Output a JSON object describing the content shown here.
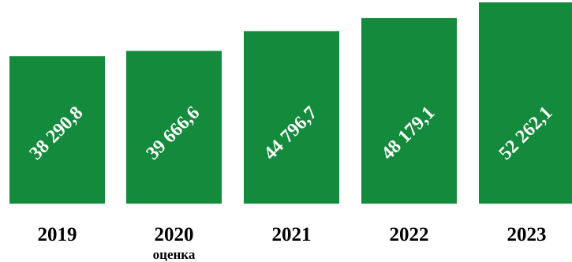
{
  "chart_data": {
    "type": "bar",
    "categories": [
      "2019",
      "2020",
      "2021",
      "2022",
      "2023"
    ],
    "category_sublabels": [
      "",
      "оценка",
      "",
      "",
      ""
    ],
    "values": [
      38290.8,
      39666.6,
      44796.7,
      48179.1,
      52262.1
    ],
    "value_labels": [
      "38 290,8",
      "39 666,6",
      "44 796,7",
      "48 179,1",
      "52 262,1"
    ],
    "bar_color": "#138a3c",
    "label_color": "#ffffff",
    "title": "",
    "xlabel": "",
    "ylabel": "",
    "axes_visible": false,
    "grid": false,
    "legend": "none"
  }
}
